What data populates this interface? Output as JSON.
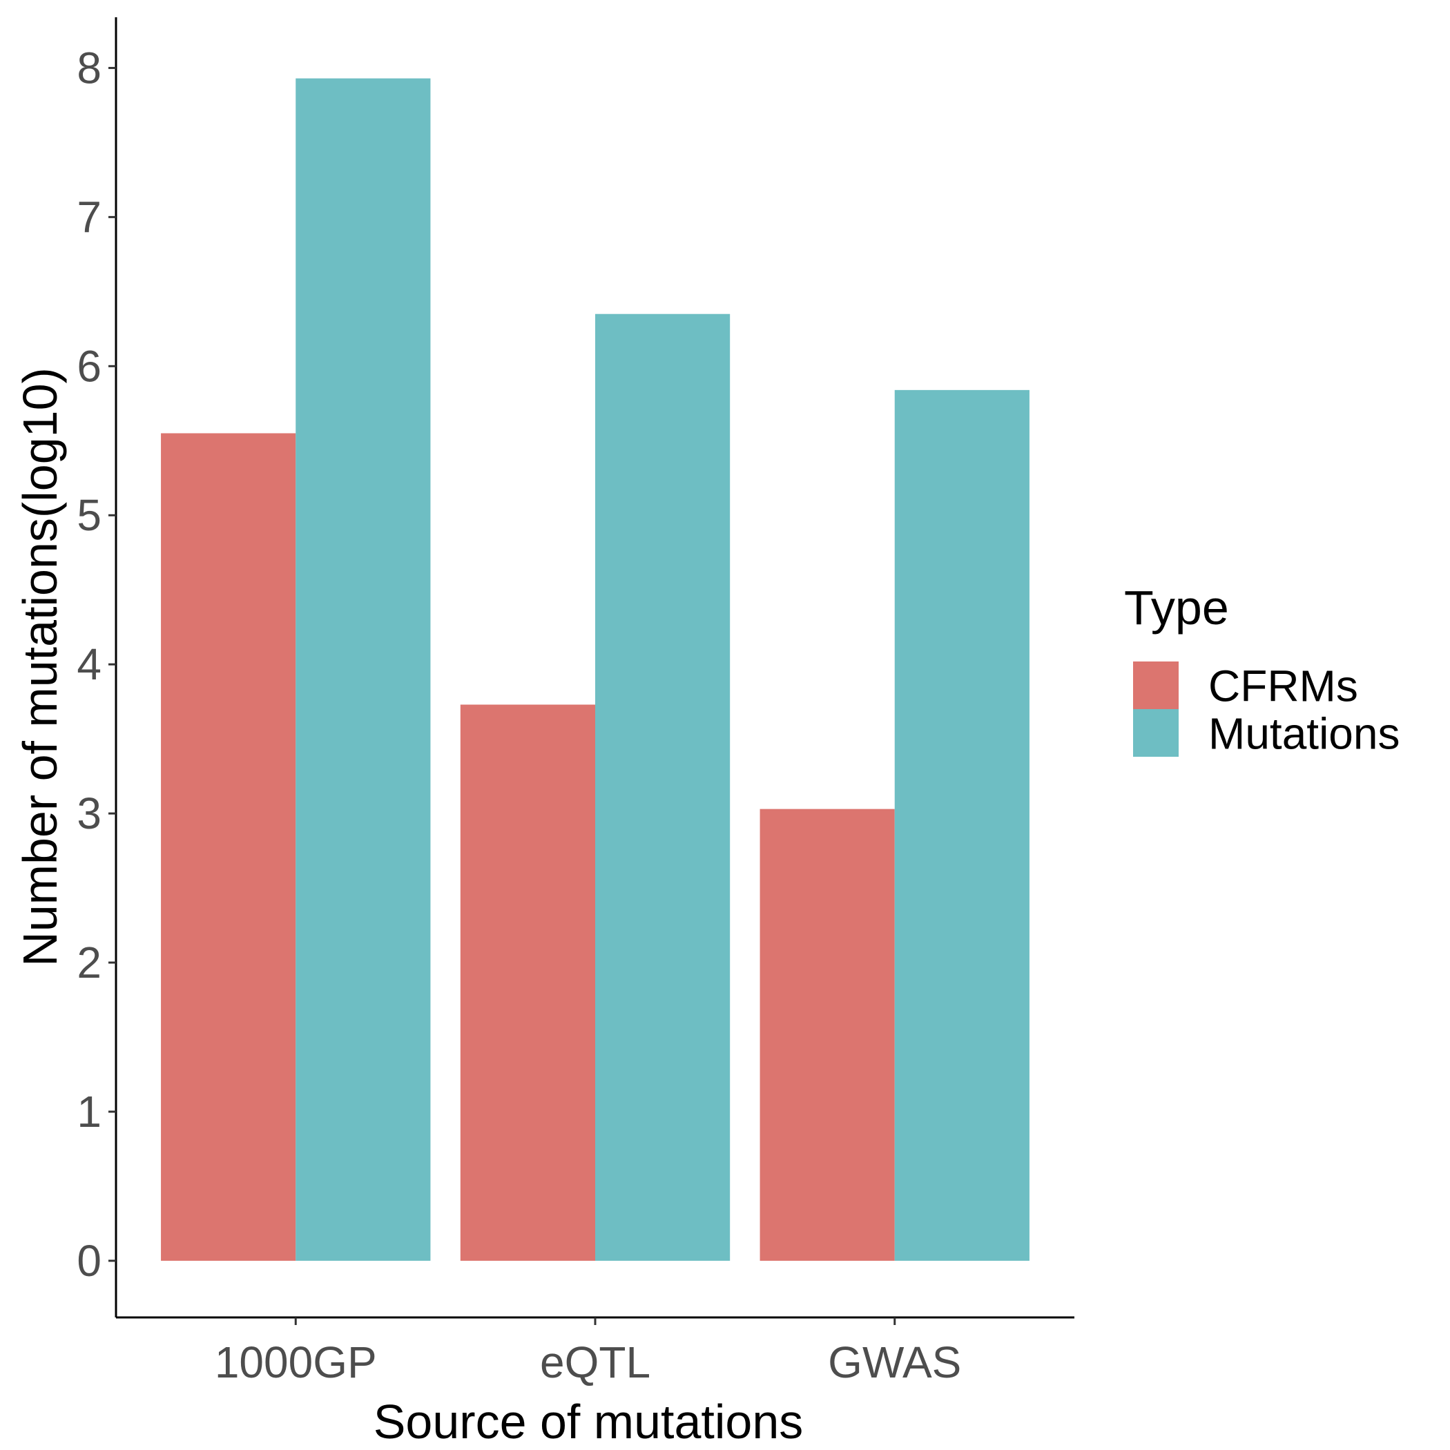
{
  "chart_data": {
    "type": "bar",
    "title": "",
    "xlabel": "Source of mutations",
    "ylabel": "Number of mutations(log10)",
    "categories": [
      "1000GP",
      "eQTL",
      "GWAS"
    ],
    "series": [
      {
        "name": "CFRMs",
        "values": [
          5.55,
          3.73,
          3.03
        ],
        "color": "#dc756f"
      },
      {
        "name": "Mutations",
        "values": [
          7.93,
          6.35,
          5.84
        ],
        "color": "#6ebec3"
      }
    ],
    "ylim": [
      -0.38,
      8.34
    ],
    "yticks": [
      0,
      1,
      2,
      3,
      4,
      5,
      6,
      7,
      8
    ],
    "grid": false,
    "legend": {
      "title": "Type",
      "placement": "right"
    }
  }
}
